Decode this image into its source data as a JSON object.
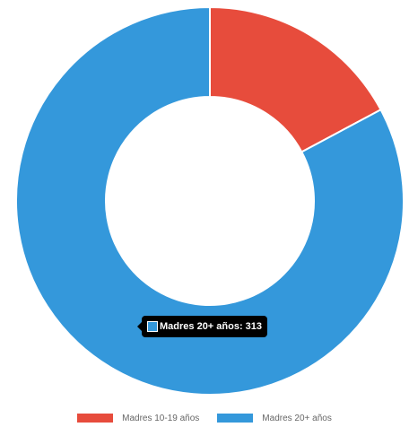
{
  "chart_data": {
    "type": "pie",
    "subtype": "doughnut",
    "categories": [
      "Madres 10-19 años",
      "Madres 20+ años"
    ],
    "values": [
      65,
      313
    ],
    "colors": [
      "#e74c3c",
      "#3498db"
    ],
    "legend_position": "bottom"
  },
  "tooltip": {
    "text": "Madres 20+ años: 313",
    "color": "#3498db"
  },
  "legend": {
    "items": [
      {
        "label": "Madres 10-19 años",
        "color": "#e74c3c"
      },
      {
        "label": "Madres 20+ años",
        "color": "#3498db"
      }
    ]
  }
}
